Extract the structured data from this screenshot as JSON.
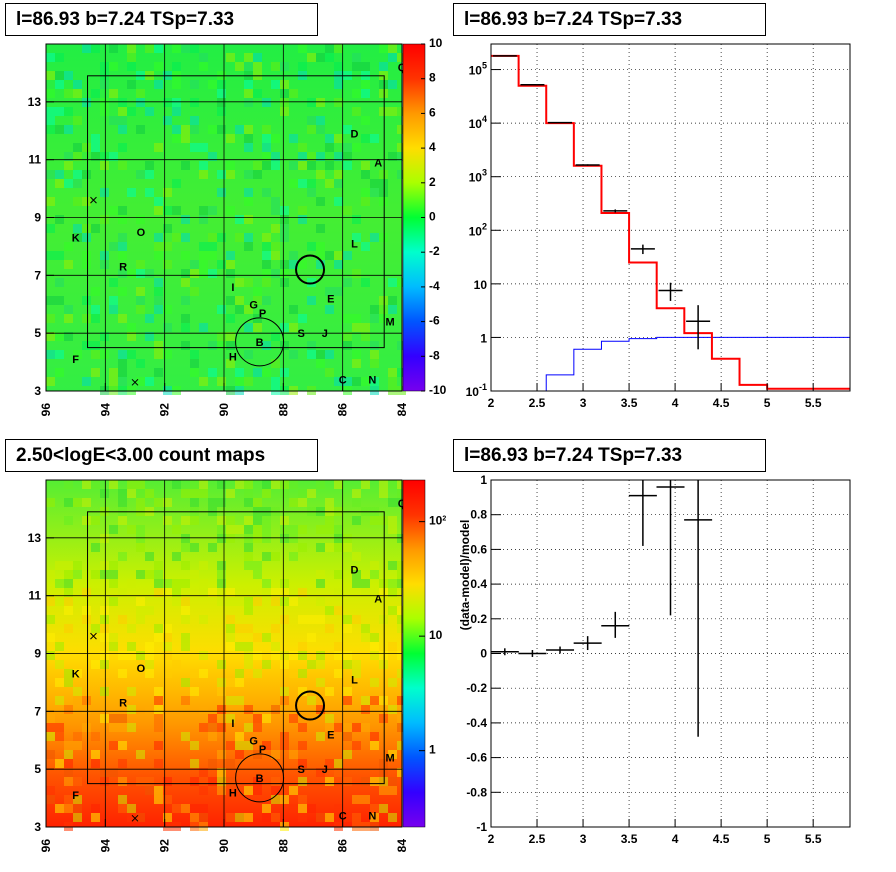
{
  "titles": {
    "top_left": "l=86.93 b=7.24 TSp=7.33",
    "top_right": "l=86.93 b=7.24 TSp=7.33",
    "bottom_left": "2.50<logE<3.00 count maps",
    "bottom_right": "l=86.93 b=7.24 TSp=7.33"
  },
  "colors": {
    "data": "#000000",
    "model": "#ff0000",
    "background": "#0000ff",
    "grid": "#000000"
  },
  "chart_data": [
    {
      "type": "heatmap",
      "title": "l=86.93 b=7.24 TSp=7.33",
      "x_ticks": [
        "96",
        "94",
        "92",
        "90",
        "88",
        "86",
        "84"
      ],
      "y_ticks": [
        "3",
        "5",
        "7",
        "9",
        "11",
        "13"
      ],
      "xlim": [
        96,
        84
      ],
      "ylim": [
        3,
        15
      ],
      "colorbar_ticks": [
        "10",
        "8",
        "6",
        "4",
        "2",
        "0",
        "-2",
        "-4",
        "-6",
        "-8",
        "-10"
      ],
      "colorbar_range": [
        -10,
        10
      ],
      "sources": [
        "A",
        "B",
        "C",
        "D",
        "E",
        "F",
        "G",
        "H",
        "I",
        "J",
        "K",
        "L",
        "M",
        "N",
        "O",
        "P",
        "Q",
        "R",
        "S"
      ]
    },
    {
      "type": "line",
      "title": "l=86.93 b=7.24 TSp=7.33",
      "x_ticks": [
        "2",
        "2.5",
        "3",
        "3.5",
        "4",
        "4.5",
        "5",
        "5.5"
      ],
      "y_ticks": [
        "10^-1",
        "1",
        "10",
        "10^2",
        "10^3",
        "10^4",
        "10^5"
      ],
      "xlim": [
        2,
        5.9
      ],
      "ylim": [
        0.1,
        300000
      ],
      "log_y": true,
      "grid": true,
      "series": [
        {
          "bins": [
            2.0,
            2.3,
            2.6,
            2.9,
            3.2,
            3.5,
            3.8,
            4.1,
            4.4,
            4.7,
            5.0,
            5.3,
            5.6,
            5.9
          ],
          "values": [
            180000,
            50000,
            10000,
            1600,
            210,
            25,
            3.5,
            1.2,
            0.4,
            0.13,
            0.11,
            0.11,
            0.11
          ]
        },
        {
          "bins": [
            2.0,
            2.3,
            2.6,
            2.9,
            3.2,
            3.5,
            3.8,
            4.1,
            4.4,
            4.7,
            5.0,
            5.3,
            5.6,
            5.9
          ],
          "values": [
            0.05,
            0.05,
            0.2,
            0.6,
            0.85,
            0.95,
            1.0,
            1.0,
            1.0,
            1.0,
            1.0,
            1.0,
            1.0
          ]
        },
        {
          "x": [
            2.15,
            2.45,
            2.75,
            3.05,
            3.35,
            3.65,
            3.95,
            4.25
          ],
          "y": [
            180000,
            52000,
            10200,
            1650,
            230,
            45,
            7.5,
            2.0
          ],
          "ylo": [
            179000,
            51700,
            10100,
            1600,
            215,
            36,
            4.8,
            0.6
          ],
          "yhi": [
            181000,
            52300,
            10300,
            1700,
            245,
            54,
            10.5,
            4.0
          ]
        }
      ]
    },
    {
      "type": "heatmap",
      "title": "2.50<logE<3.00 count maps",
      "x_ticks": [
        "96",
        "94",
        "92",
        "90",
        "88",
        "86",
        "84"
      ],
      "y_ticks": [
        "3",
        "5",
        "7",
        "9",
        "11",
        "13"
      ],
      "xlim": [
        96,
        84
      ],
      "ylim": [
        3,
        15
      ],
      "colorbar_ticks": [
        "10^2",
        "10",
        "1"
      ],
      "log_color": true,
      "sources": [
        "A",
        "B",
        "C",
        "D",
        "E",
        "F",
        "G",
        "H",
        "I",
        "J",
        "K",
        "L",
        "M",
        "N",
        "O",
        "P",
        "Q",
        "R",
        "S"
      ]
    },
    {
      "type": "scatter",
      "title": "l=86.93 b=7.24 TSp=7.33",
      "ylabel": "(data-model)/model",
      "x_ticks": [
        "2",
        "2.5",
        "3",
        "3.5",
        "4",
        "4.5",
        "5",
        "5.5"
      ],
      "y_ticks": [
        "-1",
        "-0.8",
        "-0.6",
        "-0.4",
        "-0.2",
        "0",
        "0.2",
        "0.4",
        "0.6",
        "0.8",
        "1"
      ],
      "xlim": [
        2,
        5.9
      ],
      "ylim": [
        -1,
        1
      ],
      "grid": true,
      "points": {
        "x": [
          2.15,
          2.45,
          2.75,
          3.05,
          3.35,
          3.65,
          3.95,
          4.25
        ],
        "y": [
          0.01,
          0.0,
          0.02,
          0.06,
          0.16,
          0.91,
          0.96,
          0.77
        ],
        "ylo": [
          -0.01,
          -0.02,
          0.0,
          0.02,
          0.09,
          0.62,
          0.22,
          -0.48
        ],
        "yhi": [
          0.03,
          0.02,
          0.04,
          0.1,
          0.24,
          1.0,
          1.0,
          1.0
        ]
      }
    }
  ]
}
